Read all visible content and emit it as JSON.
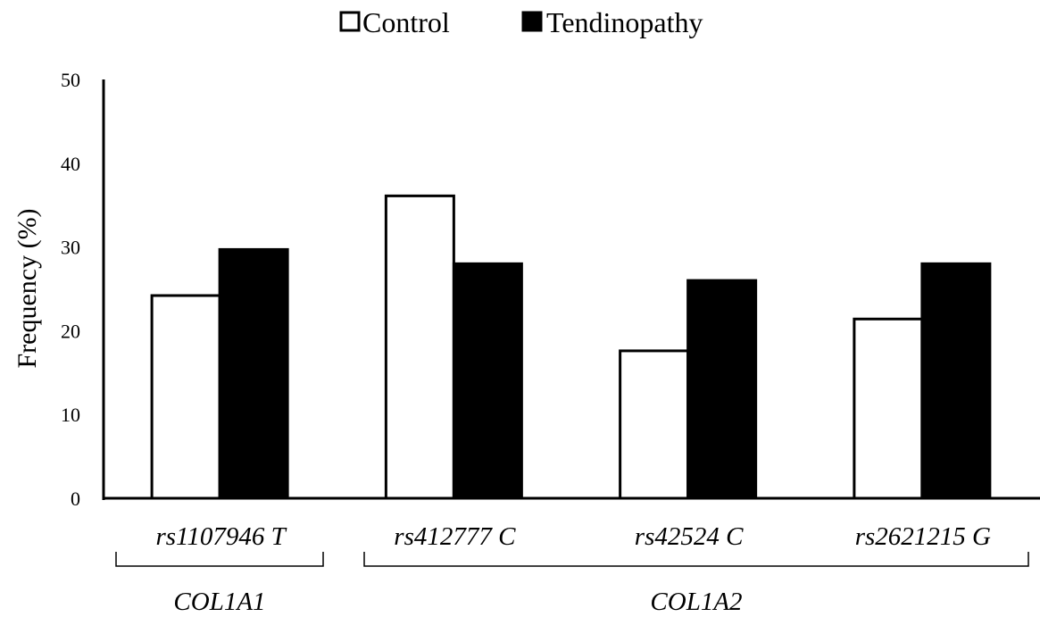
{
  "chart_data": {
    "type": "bar",
    "title": "",
    "ylabel": "Frequency (%)",
    "xlabel": "",
    "ylim": [
      0,
      50
    ],
    "yticks": [
      0,
      10,
      20,
      30,
      40,
      50
    ],
    "grid": false,
    "legend_position": "top-center",
    "categories": [
      "rs1107946 T",
      "rs412777 C",
      "rs42524 C",
      "rs2621215 G"
    ],
    "series": [
      {
        "name": "Control",
        "values": [
          24.2,
          36.1,
          17.6,
          21.4
        ],
        "fill": "#ffffff",
        "stroke": "#000000"
      },
      {
        "name": "Tendinopathy",
        "values": [
          29.7,
          28.0,
          26.0,
          28.0
        ],
        "fill": "#000000",
        "stroke": "#000000"
      }
    ],
    "gene_groups": [
      {
        "label": "COL1A1",
        "categories": [
          "rs1107946 T"
        ]
      },
      {
        "label": "COL1A2",
        "categories": [
          "rs412777 C",
          "rs42524 C",
          "rs2621215 G"
        ]
      }
    ]
  }
}
